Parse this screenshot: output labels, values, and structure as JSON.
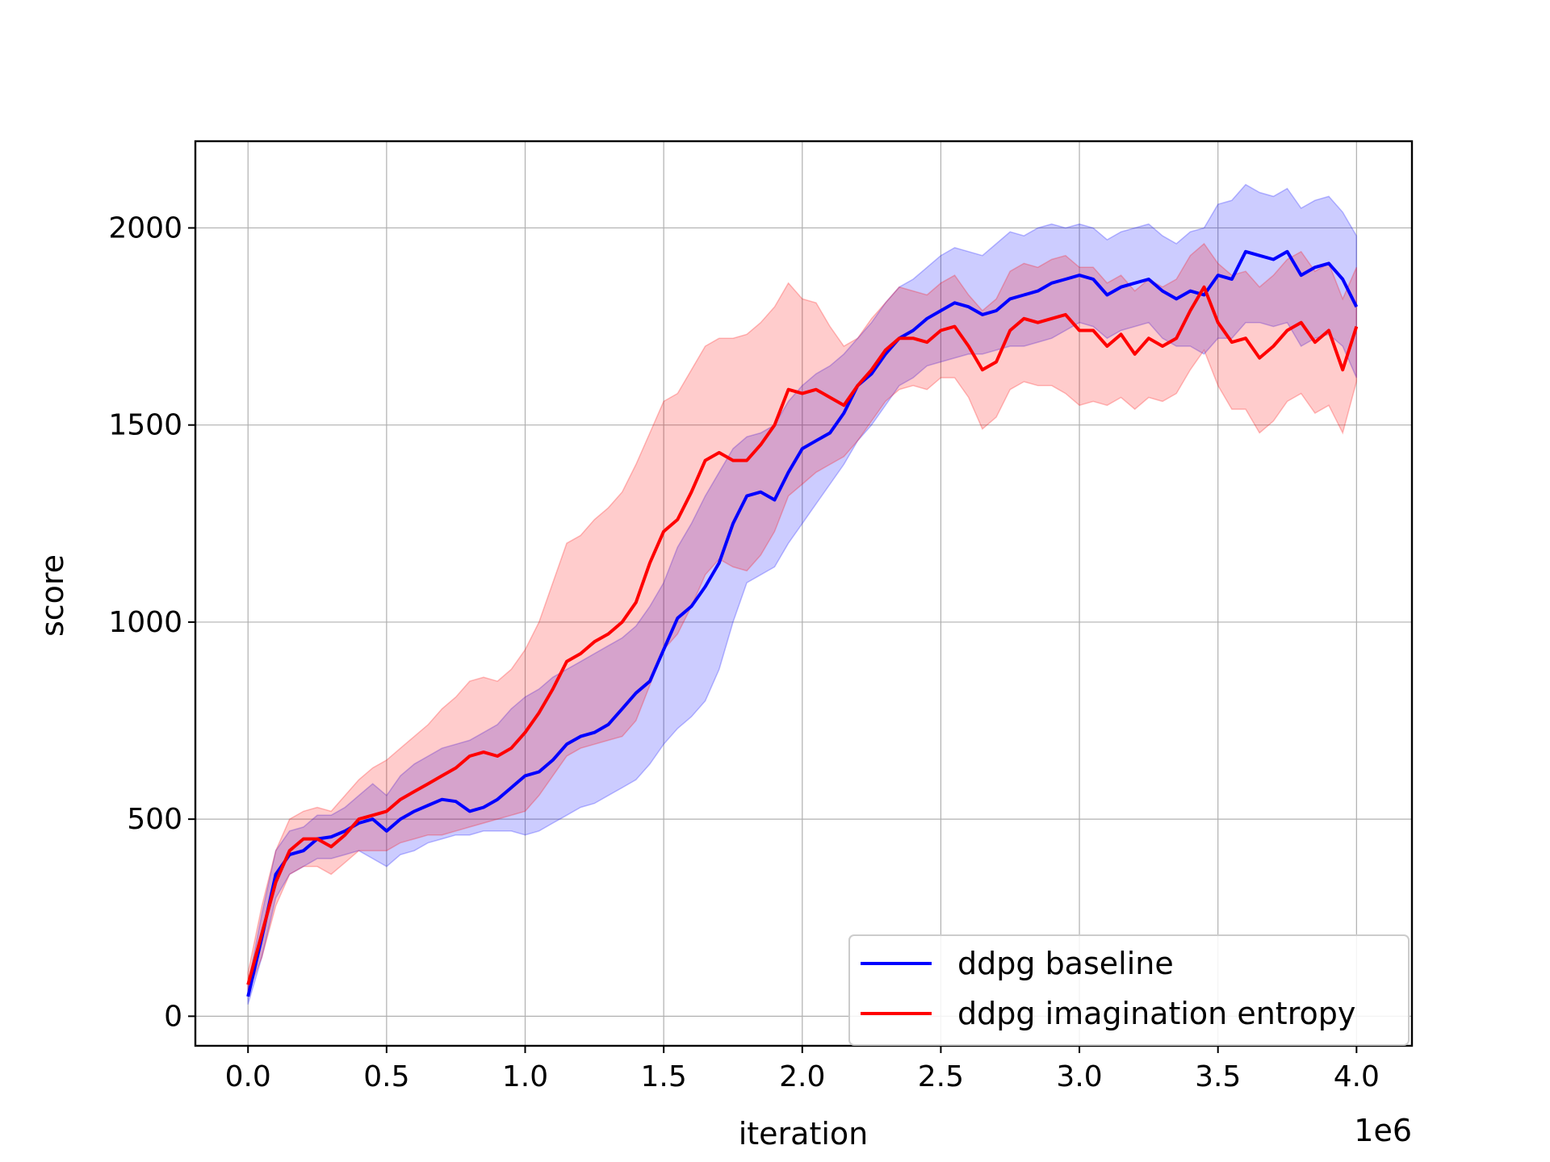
{
  "chart_data": {
    "type": "line",
    "xlabel": "iteration",
    "ylabel": "score",
    "x_offset_label": "1e6",
    "xlim": [
      -0.19,
      4.2
    ],
    "ylim": [
      -75,
      2220
    ],
    "xticks": [
      0.0,
      0.5,
      1.0,
      1.5,
      2.0,
      2.5,
      3.0,
      3.5,
      4.0
    ],
    "xtick_labels": [
      "0.0",
      "0.5",
      "1.0",
      "1.5",
      "2.0",
      "2.5",
      "3.0",
      "3.5",
      "4.0"
    ],
    "yticks": [
      0,
      500,
      1000,
      1500,
      2000
    ],
    "ytick_labels": [
      "0",
      "500",
      "1000",
      "1500",
      "2000"
    ],
    "x_unit": "×1e6 iterations",
    "grid": true,
    "legend_placement": "lower-right",
    "series": [
      {
        "name": "ddpg baseline",
        "color": "#0000ff",
        "band_color": "#0000ff",
        "x": [
          0.0,
          0.05,
          0.1,
          0.15,
          0.2,
          0.25,
          0.3,
          0.35,
          0.4,
          0.45,
          0.5,
          0.55,
          0.6,
          0.65,
          0.7,
          0.75,
          0.8,
          0.85,
          0.9,
          0.95,
          1.0,
          1.05,
          1.1,
          1.15,
          1.2,
          1.25,
          1.3,
          1.35,
          1.4,
          1.45,
          1.5,
          1.55,
          1.6,
          1.65,
          1.7,
          1.75,
          1.8,
          1.85,
          1.9,
          1.95,
          2.0,
          2.05,
          2.1,
          2.15,
          2.2,
          2.25,
          2.3,
          2.35,
          2.4,
          2.45,
          2.5,
          2.55,
          2.6,
          2.65,
          2.7,
          2.75,
          2.8,
          2.85,
          2.9,
          2.95,
          3.0,
          3.05,
          3.1,
          3.15,
          3.2,
          3.25,
          3.3,
          3.35,
          3.4,
          3.45,
          3.5,
          3.55,
          3.6,
          3.65,
          3.7,
          3.75,
          3.8,
          3.85,
          3.9,
          3.95,
          4.0
        ],
        "mean": [
          50,
          200,
          360,
          410,
          420,
          450,
          455,
          470,
          490,
          500,
          470,
          500,
          520,
          535,
          550,
          545,
          520,
          530,
          550,
          580,
          610,
          620,
          650,
          690,
          710,
          720,
          740,
          780,
          820,
          850,
          930,
          1010,
          1040,
          1090,
          1150,
          1250,
          1320,
          1330,
          1310,
          1380,
          1440,
          1460,
          1480,
          1530,
          1600,
          1630,
          1680,
          1720,
          1740,
          1770,
          1790,
          1810,
          1800,
          1780,
          1790,
          1820,
          1830,
          1840,
          1860,
          1870,
          1880,
          1870,
          1830,
          1850,
          1860,
          1870,
          1840,
          1820,
          1840,
          1830,
          1880,
          1870,
          1940,
          1930,
          1920,
          1940,
          1880,
          1900,
          1910,
          1870,
          1800
        ],
        "lower": [
          30,
          150,
          300,
          360,
          380,
          400,
          400,
          410,
          420,
          400,
          380,
          410,
          420,
          440,
          450,
          460,
          460,
          470,
          470,
          470,
          460,
          470,
          490,
          510,
          530,
          540,
          560,
          580,
          600,
          640,
          690,
          730,
          760,
          800,
          880,
          1000,
          1100,
          1120,
          1140,
          1200,
          1250,
          1300,
          1350,
          1400,
          1460,
          1500,
          1550,
          1600,
          1620,
          1650,
          1660,
          1670,
          1680,
          1680,
          1690,
          1700,
          1700,
          1710,
          1720,
          1740,
          1760,
          1750,
          1720,
          1740,
          1750,
          1760,
          1720,
          1700,
          1700,
          1680,
          1720,
          1720,
          1760,
          1760,
          1750,
          1760,
          1700,
          1720,
          1730,
          1700,
          1620
        ],
        "upper": [
          80,
          260,
          420,
          470,
          480,
          510,
          510,
          530,
          560,
          590,
          560,
          610,
          640,
          660,
          680,
          690,
          700,
          720,
          740,
          780,
          810,
          830,
          860,
          880,
          900,
          920,
          940,
          960,
          990,
          1040,
          1100,
          1190,
          1250,
          1320,
          1380,
          1440,
          1470,
          1480,
          1500,
          1560,
          1600,
          1630,
          1650,
          1680,
          1720,
          1760,
          1810,
          1850,
          1870,
          1900,
          1930,
          1950,
          1940,
          1930,
          1960,
          1990,
          1980,
          2000,
          2010,
          2000,
          2010,
          2000,
          1970,
          1990,
          2000,
          2010,
          1980,
          1960,
          1990,
          2000,
          2060,
          2070,
          2110,
          2090,
          2080,
          2100,
          2050,
          2070,
          2080,
          2040,
          1980
        ]
      },
      {
        "name": "ddpg imagination entropy",
        "color": "#ff0000",
        "band_color": "#ff0000",
        "x": [
          0.0,
          0.05,
          0.1,
          0.15,
          0.2,
          0.25,
          0.3,
          0.35,
          0.4,
          0.45,
          0.5,
          0.55,
          0.6,
          0.65,
          0.7,
          0.75,
          0.8,
          0.85,
          0.9,
          0.95,
          1.0,
          1.05,
          1.1,
          1.15,
          1.2,
          1.25,
          1.3,
          1.35,
          1.4,
          1.45,
          1.5,
          1.55,
          1.6,
          1.65,
          1.7,
          1.75,
          1.8,
          1.85,
          1.9,
          1.95,
          2.0,
          2.05,
          2.1,
          2.15,
          2.2,
          2.25,
          2.3,
          2.35,
          2.4,
          2.45,
          2.5,
          2.55,
          2.6,
          2.65,
          2.7,
          2.75,
          2.8,
          2.85,
          2.9,
          2.95,
          3.0,
          3.05,
          3.1,
          3.15,
          3.2,
          3.25,
          3.3,
          3.35,
          3.4,
          3.45,
          3.5,
          3.55,
          3.6,
          3.65,
          3.7,
          3.75,
          3.8,
          3.85,
          3.9,
          3.95,
          4.0
        ],
        "mean": [
          80,
          210,
          340,
          420,
          450,
          450,
          430,
          460,
          500,
          510,
          520,
          550,
          570,
          590,
          610,
          630,
          660,
          670,
          660,
          680,
          720,
          770,
          830,
          900,
          920,
          950,
          970,
          1000,
          1050,
          1150,
          1230,
          1260,
          1330,
          1410,
          1430,
          1410,
          1410,
          1450,
          1500,
          1590,
          1580,
          1590,
          1570,
          1550,
          1600,
          1640,
          1690,
          1720,
          1720,
          1710,
          1740,
          1750,
          1700,
          1640,
          1660,
          1740,
          1770,
          1760,
          1770,
          1780,
          1740,
          1740,
          1700,
          1730,
          1680,
          1720,
          1700,
          1720,
          1790,
          1850,
          1760,
          1710,
          1720,
          1670,
          1700,
          1740,
          1760,
          1710,
          1740,
          1640,
          1750
        ],
        "lower": [
          60,
          150,
          280,
          360,
          380,
          380,
          360,
          390,
          420,
          420,
          420,
          440,
          450,
          460,
          460,
          470,
          480,
          490,
          500,
          510,
          520,
          560,
          610,
          660,
          680,
          690,
          700,
          710,
          750,
          840,
          930,
          970,
          1040,
          1120,
          1160,
          1140,
          1130,
          1170,
          1230,
          1320,
          1350,
          1380,
          1400,
          1420,
          1460,
          1510,
          1560,
          1590,
          1600,
          1590,
          1620,
          1620,
          1570,
          1490,
          1520,
          1590,
          1610,
          1600,
          1600,
          1580,
          1550,
          1560,
          1550,
          1570,
          1540,
          1570,
          1560,
          1580,
          1640,
          1690,
          1600,
          1540,
          1540,
          1480,
          1510,
          1560,
          1580,
          1530,
          1550,
          1480,
          1610
        ],
        "upper": [
          110,
          280,
          420,
          500,
          520,
          530,
          520,
          560,
          600,
          630,
          650,
          680,
          710,
          740,
          780,
          810,
          850,
          860,
          850,
          880,
          930,
          1000,
          1100,
          1200,
          1220,
          1260,
          1290,
          1330,
          1400,
          1480,
          1560,
          1580,
          1640,
          1700,
          1720,
          1720,
          1730,
          1760,
          1800,
          1860,
          1820,
          1810,
          1750,
          1700,
          1720,
          1770,
          1810,
          1850,
          1840,
          1830,
          1860,
          1880,
          1830,
          1790,
          1820,
          1890,
          1910,
          1900,
          1920,
          1930,
          1900,
          1900,
          1860,
          1880,
          1840,
          1870,
          1850,
          1870,
          1930,
          1960,
          1910,
          1880,
          1890,
          1850,
          1880,
          1920,
          1940,
          1890,
          1910,
          1820,
          1900
        ]
      }
    ]
  }
}
